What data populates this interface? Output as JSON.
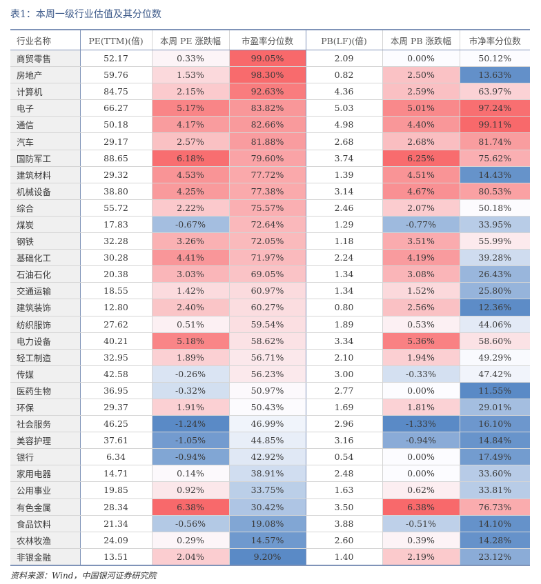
{
  "title": "表1：本周一级行业估值及其分位数",
  "headers": [
    "行业名称",
    "PE(TTM)(倍)",
    "本周 PE 涨跌幅",
    "市盈率分位数",
    "PB(LF)(倍)",
    "本周 PB 涨跌幅",
    "市净率分位数"
  ],
  "rows": [
    {
      "name": "商贸零售",
      "pe": "52.17",
      "pe_chg": "0.33%",
      "pe_pct": "99.05%",
      "pb": "2.09",
      "pb_chg": "0.00%",
      "pb_pct": "50.12%"
    },
    {
      "name": "房地产",
      "pe": "59.76",
      "pe_chg": "1.53%",
      "pe_pct": "98.30%",
      "pb": "0.82",
      "pb_chg": "2.50%",
      "pb_pct": "13.63%"
    },
    {
      "name": "计算机",
      "pe": "84.75",
      "pe_chg": "2.15%",
      "pe_pct": "92.63%",
      "pb": "4.36",
      "pb_chg": "2.59%",
      "pb_pct": "63.97%"
    },
    {
      "name": "电子",
      "pe": "66.27",
      "pe_chg": "5.17%",
      "pe_pct": "83.82%",
      "pb": "5.03",
      "pb_chg": "5.01%",
      "pb_pct": "97.24%"
    },
    {
      "name": "通信",
      "pe": "50.18",
      "pe_chg": "4.17%",
      "pe_pct": "82.66%",
      "pb": "4.98",
      "pb_chg": "4.40%",
      "pb_pct": "99.11%"
    },
    {
      "name": "汽车",
      "pe": "29.17",
      "pe_chg": "2.57%",
      "pe_pct": "81.88%",
      "pb": "2.68",
      "pb_chg": "2.68%",
      "pb_pct": "81.74%"
    },
    {
      "name": "国防军工",
      "pe": "88.65",
      "pe_chg": "6.18%",
      "pe_pct": "79.60%",
      "pb": "3.74",
      "pb_chg": "6.25%",
      "pb_pct": "75.62%"
    },
    {
      "name": "建筑材料",
      "pe": "29.32",
      "pe_chg": "4.53%",
      "pe_pct": "77.72%",
      "pb": "1.39",
      "pb_chg": "4.51%",
      "pb_pct": "14.43%"
    },
    {
      "name": "机械设备",
      "pe": "38.80",
      "pe_chg": "4.25%",
      "pe_pct": "77.38%",
      "pb": "3.14",
      "pb_chg": "4.67%",
      "pb_pct": "80.53%"
    },
    {
      "name": "综合",
      "pe": "55.72",
      "pe_chg": "2.22%",
      "pe_pct": "75.57%",
      "pb": "2.46",
      "pb_chg": "2.07%",
      "pb_pct": "50.18%"
    },
    {
      "name": "煤炭",
      "pe": "17.83",
      "pe_chg": "-0.67%",
      "pe_pct": "72.64%",
      "pb": "1.29",
      "pb_chg": "-0.77%",
      "pb_pct": "33.95%"
    },
    {
      "name": "钢铁",
      "pe": "32.28",
      "pe_chg": "3.26%",
      "pe_pct": "72.05%",
      "pb": "1.18",
      "pb_chg": "3.51%",
      "pb_pct": "55.99%"
    },
    {
      "name": "基础化工",
      "pe": "30.28",
      "pe_chg": "4.41%",
      "pe_pct": "71.97%",
      "pb": "2.24",
      "pb_chg": "4.19%",
      "pb_pct": "39.28%"
    },
    {
      "name": "石油石化",
      "pe": "20.38",
      "pe_chg": "3.03%",
      "pe_pct": "69.05%",
      "pb": "1.34",
      "pb_chg": "3.08%",
      "pb_pct": "26.43%"
    },
    {
      "name": "交通运输",
      "pe": "18.55",
      "pe_chg": "1.42%",
      "pe_pct": "60.97%",
      "pb": "1.34",
      "pb_chg": "1.52%",
      "pb_pct": "25.80%"
    },
    {
      "name": "建筑装饰",
      "pe": "12.80",
      "pe_chg": "2.40%",
      "pe_pct": "60.27%",
      "pb": "0.80",
      "pb_chg": "2.56%",
      "pb_pct": "12.36%"
    },
    {
      "name": "纺织服饰",
      "pe": "27.62",
      "pe_chg": "0.51%",
      "pe_pct": "59.54%",
      "pb": "1.89",
      "pb_chg": "0.53%",
      "pb_pct": "44.06%"
    },
    {
      "name": "电力设备",
      "pe": "40.21",
      "pe_chg": "5.18%",
      "pe_pct": "58.62%",
      "pb": "3.34",
      "pb_chg": "5.36%",
      "pb_pct": "58.60%"
    },
    {
      "name": "轻工制造",
      "pe": "32.95",
      "pe_chg": "1.89%",
      "pe_pct": "56.71%",
      "pb": "2.10",
      "pb_chg": "1.94%",
      "pb_pct": "49.29%"
    },
    {
      "name": "传媒",
      "pe": "42.58",
      "pe_chg": "-0.26%",
      "pe_pct": "56.23%",
      "pb": "3.00",
      "pb_chg": "-0.33%",
      "pb_pct": "47.42%"
    },
    {
      "name": "医药生物",
      "pe": "36.95",
      "pe_chg": "-0.32%",
      "pe_pct": "50.97%",
      "pb": "2.77",
      "pb_chg": "0.00%",
      "pb_pct": "11.55%"
    },
    {
      "name": "环保",
      "pe": "29.37",
      "pe_chg": "1.91%",
      "pe_pct": "50.43%",
      "pb": "1.69",
      "pb_chg": "1.81%",
      "pb_pct": "29.01%"
    },
    {
      "name": "社会服务",
      "pe": "46.25",
      "pe_chg": "-1.24%",
      "pe_pct": "46.99%",
      "pb": "2.96",
      "pb_chg": "-1.33%",
      "pb_pct": "16.10%"
    },
    {
      "name": "美容护理",
      "pe": "37.61",
      "pe_chg": "-1.05%",
      "pe_pct": "44.85%",
      "pb": "3.16",
      "pb_chg": "-0.94%",
      "pb_pct": "14.84%"
    },
    {
      "name": "银行",
      "pe": "6.34",
      "pe_chg": "-0.94%",
      "pe_pct": "42.92%",
      "pb": "0.54",
      "pb_chg": "0.00%",
      "pb_pct": "17.49%"
    },
    {
      "name": "家用电器",
      "pe": "14.71",
      "pe_chg": "0.14%",
      "pe_pct": "38.91%",
      "pb": "2.48",
      "pb_chg": "0.00%",
      "pb_pct": "33.60%"
    },
    {
      "name": "公用事业",
      "pe": "19.85",
      "pe_chg": "0.92%",
      "pe_pct": "33.75%",
      "pb": "1.63",
      "pb_chg": "0.62%",
      "pb_pct": "33.81%"
    },
    {
      "name": "有色金属",
      "pe": "28.34",
      "pe_chg": "6.38%",
      "pe_pct": "30.42%",
      "pb": "3.50",
      "pb_chg": "6.38%",
      "pb_pct": "76.73%"
    },
    {
      "name": "食品饮料",
      "pe": "21.34",
      "pe_chg": "-0.56%",
      "pe_pct": "19.08%",
      "pb": "3.88",
      "pb_chg": "-0.51%",
      "pb_pct": "14.10%"
    },
    {
      "name": "农林牧渔",
      "pe": "24.09",
      "pe_chg": "0.29%",
      "pe_pct": "14.57%",
      "pb": "2.60",
      "pb_chg": "0.39%",
      "pb_pct": "14.28%"
    },
    {
      "name": "非银金融",
      "pe": "13.51",
      "pe_chg": "2.04%",
      "pe_pct": "9.20%",
      "pb": "1.40",
      "pb_chg": "2.19%",
      "pb_pct": "23.12%"
    }
  ],
  "colors": {
    "high": "#f8696b",
    "mid": "#fcfcff",
    "low": "#5a8ac6"
  },
  "footer": "资料来源：Wind，中国银河证券研究院"
}
